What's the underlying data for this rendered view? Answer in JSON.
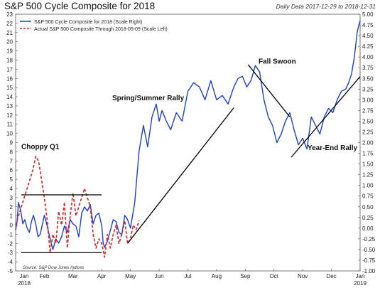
{
  "title": "S&P 500 Cycle Composite for 2018",
  "subtitle": "Daily Data 2017-12-29 to 2018-12-31",
  "chart_data": {
    "type": "line",
    "title": "S&P 500 Cycle Composite for 2018",
    "left_axis": {
      "ylim": [
        -5,
        23
      ],
      "ticks": [
        -5,
        -4,
        -3,
        -2,
        -1,
        0,
        1,
        2,
        3,
        4,
        5,
        6,
        7,
        8,
        9,
        10,
        11,
        12,
        13,
        14,
        15,
        16,
        17,
        18,
        19,
        20,
        21,
        22,
        23
      ]
    },
    "right_axis": {
      "ylim": [
        -1.0,
        5.0
      ],
      "ticks": [
        "-1.00",
        "-0.75",
        "-0.50",
        "-0.25",
        "0.00",
        "0.25",
        "0.50",
        "0.75",
        "1.00",
        "1.25",
        "1.50",
        "1.75",
        "2.00",
        "2.25",
        "2.50",
        "2.75",
        "3.00",
        "3.25",
        "3.50",
        "3.75",
        "4.00",
        "4.25",
        "4.50",
        "4.75",
        "5.00"
      ]
    },
    "x_ticks": [
      "Jan",
      "Feb",
      "Mar",
      "Apr",
      "May",
      "Jun",
      "Jul",
      "Aug",
      "Sep",
      "Oct",
      "Nov",
      "Dec",
      "Jan"
    ],
    "x_years": [
      "2018",
      "2019"
    ],
    "grid": false,
    "legend_position": "top-left",
    "series": [
      {
        "name": "S&P 500 Cycle Composite for 2018 (Scale Right)",
        "axis": "right",
        "color": "#1f3fd6",
        "style": "solid",
        "x": [
          0,
          0.05,
          0.1,
          0.18,
          0.25,
          0.32,
          0.4,
          0.48,
          0.55,
          0.62,
          0.7,
          0.78,
          0.85,
          0.92,
          1.0,
          1.08,
          1.15,
          1.22,
          1.3,
          1.4,
          1.5,
          1.6,
          1.7,
          1.8,
          1.9,
          2.0,
          2.1,
          2.2,
          2.3,
          2.4,
          2.5,
          2.6,
          2.7,
          2.8,
          2.9,
          3.0,
          3.05,
          3.1,
          3.2,
          3.3,
          3.4,
          3.5,
          3.6,
          3.7,
          3.8,
          3.9,
          4.0,
          4.15,
          4.3,
          4.45,
          4.6,
          4.75,
          4.9,
          5.0,
          5.1,
          5.25,
          5.4,
          5.6,
          5.8,
          6.0,
          6.2,
          6.4,
          6.6,
          6.8,
          7.0,
          7.2,
          7.4,
          7.6,
          7.75,
          7.9,
          8.05,
          8.2,
          8.35,
          8.5,
          8.65,
          8.8,
          8.95,
          9.1,
          9.25,
          9.4,
          9.55,
          9.7,
          9.85,
          10.0,
          10.15,
          10.3,
          10.45,
          10.6,
          10.75,
          10.9,
          11.05,
          11.2,
          11.35,
          11.5,
          11.6,
          11.7,
          11.8,
          11.9,
          12.0
        ],
        "y": [
          -0.05,
          0.15,
          0.6,
          0.4,
          0.1,
          0.2,
          0.0,
          -0.1,
          0.15,
          0.3,
          0.1,
          -0.2,
          -0.15,
          0.05,
          0.3,
          0.1,
          -0.1,
          -0.3,
          -0.5,
          -0.25,
          -0.35,
          -0.2,
          0.05,
          -0.1,
          0.2,
          0.1,
          0.05,
          -0.2,
          0.35,
          0.5,
          0.4,
          0.55,
          0.1,
          0.3,
          0.35,
          0.05,
          -0.35,
          -0.45,
          -0.3,
          -0.05,
          0.2,
          0.15,
          -0.1,
          -0.15,
          0.3,
          0.2,
          0.0,
          0.6,
          1.8,
          2.4,
          1.9,
          2.6,
          2.9,
          2.5,
          2.75,
          2.5,
          2.3,
          2.7,
          2.5,
          3.2,
          3.4,
          3.3,
          3.0,
          3.45,
          3.0,
          3.1,
          2.9,
          3.3,
          3.5,
          3.55,
          3.3,
          3.45,
          3.8,
          3.65,
          3.0,
          2.6,
          2.4,
          2.0,
          2.2,
          2.5,
          2.7,
          2.3,
          1.95,
          2.1,
          1.85,
          2.6,
          2.4,
          2.2,
          2.6,
          2.8,
          2.7,
          3.0,
          3.2,
          3.25,
          3.4,
          3.6,
          4.0,
          4.6,
          4.85
        ],
        "y_right_note": "values on right scale"
      },
      {
        "name": "Actual S&P 500 Composite Through 2018-05-09 (Scale Left)",
        "axis": "left",
        "color": "#e02020",
        "style": "dashed",
        "x": [
          0,
          0.1,
          0.2,
          0.3,
          0.4,
          0.5,
          0.6,
          0.7,
          0.8,
          0.9,
          1.0,
          1.1,
          1.2,
          1.3,
          1.4,
          1.5,
          1.6,
          1.7,
          1.8,
          1.9,
          2.0,
          2.1,
          2.2,
          2.3,
          2.4,
          2.5,
          2.6,
          2.7,
          2.8,
          2.9,
          3.0,
          3.1,
          3.2,
          3.3,
          3.4,
          3.5,
          3.6,
          3.7,
          3.8,
          3.9,
          4.0,
          4.1,
          4.2,
          4.3
        ],
        "y": [
          0.0,
          1.0,
          2.0,
          3.0,
          4.0,
          5.0,
          6.0,
          7.5,
          7.0,
          5.0,
          3.0,
          0.5,
          -3.0,
          -1.0,
          -2.0,
          1.5,
          0.0,
          2.5,
          -2.5,
          1.0,
          3.5,
          1.0,
          2.0,
          3.0,
          4.0,
          3.0,
          2.0,
          -1.0,
          -2.5,
          -1.5,
          -2.0,
          -3.5,
          -1.0,
          -2.5,
          -1.0,
          0.0,
          -2.0,
          -1.0,
          0.5,
          -2.0,
          -1.5,
          0.0,
          -0.5,
          0.5
        ]
      }
    ],
    "annotations": [
      {
        "text": "Choppy Q1"
      },
      {
        "text": "Spring/Summer Rally"
      },
      {
        "text": "Fall Swoon"
      },
      {
        "text": "Year-End Rally"
      }
    ],
    "source": "Source:  S&P Dow Jones Indices"
  }
}
